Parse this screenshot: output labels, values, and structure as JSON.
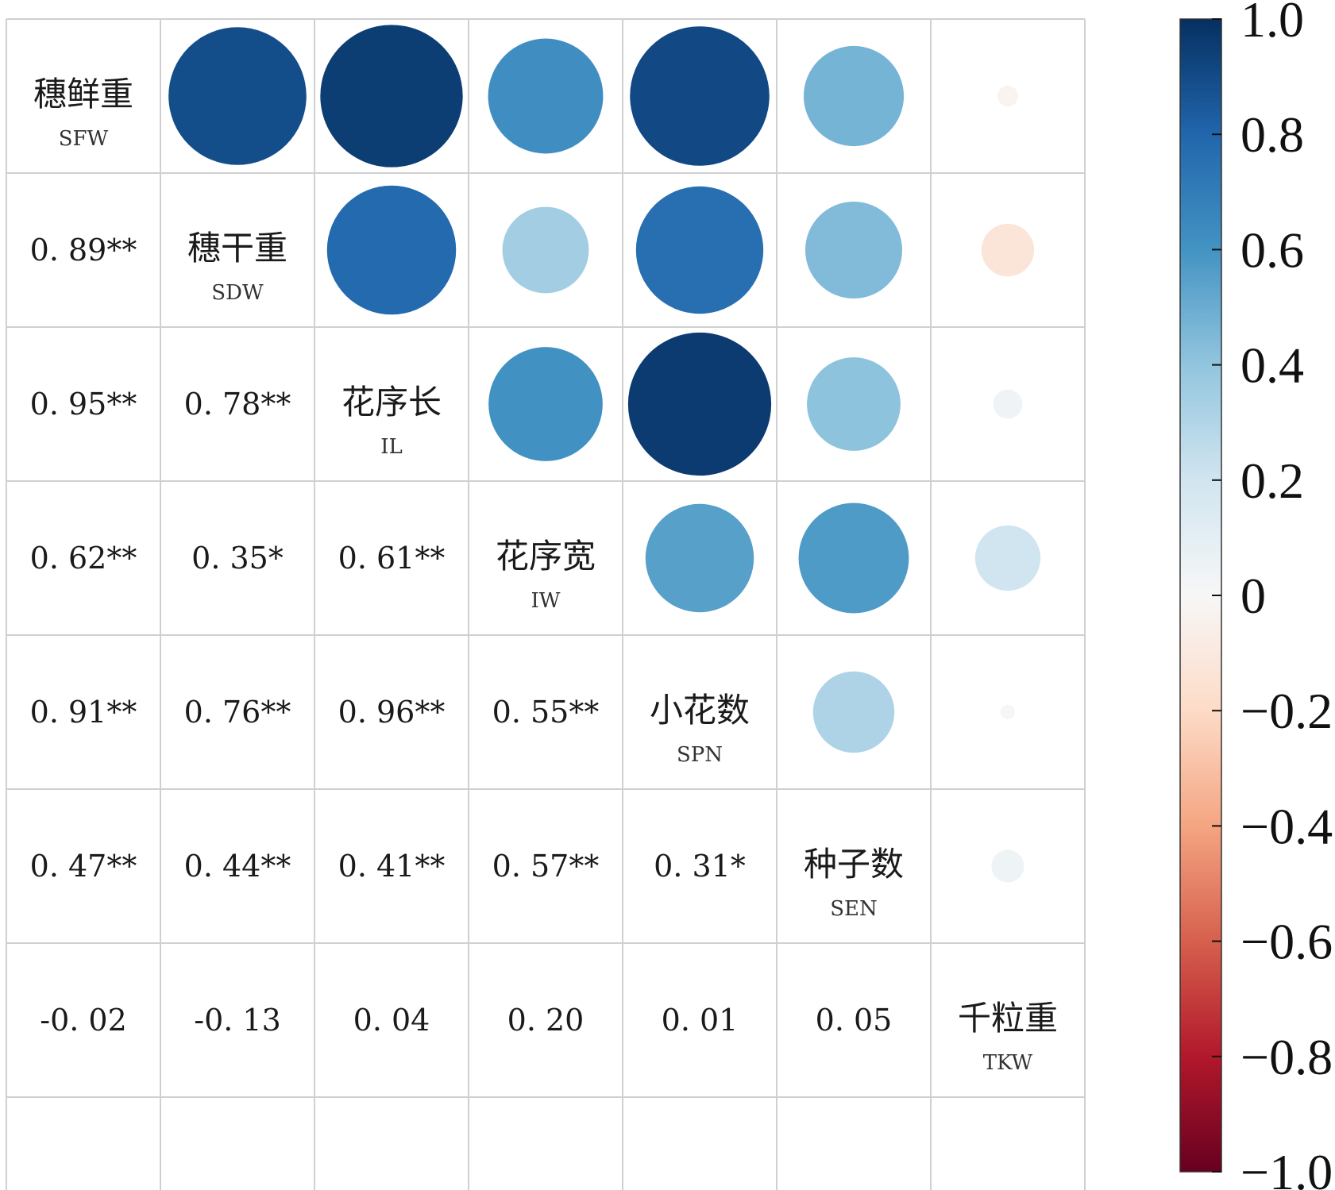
{
  "chart_data": {
    "type": "heatmap",
    "title": "",
    "variables": [
      {
        "name": "穗鲜重",
        "abbr": "SFW"
      },
      {
        "name": "穗干重",
        "abbr": "SDW"
      },
      {
        "name": "花序长",
        "abbr": "IL"
      },
      {
        "name": "花序宽",
        "abbr": "IW"
      },
      {
        "name": "小花数",
        "abbr": "SPN"
      },
      {
        "name": "种子数",
        "abbr": "SEN"
      },
      {
        "name": "千粒重",
        "abbr": "TKW"
      }
    ],
    "correlation_matrix": [
      [
        1.0,
        0.89,
        0.95,
        0.62,
        0.91,
        0.47,
        -0.02
      ],
      [
        0.89,
        1.0,
        0.78,
        0.35,
        0.76,
        0.44,
        -0.13
      ],
      [
        0.95,
        0.78,
        1.0,
        0.61,
        0.96,
        0.41,
        0.04
      ],
      [
        0.62,
        0.35,
        0.61,
        1.0,
        0.55,
        0.57,
        0.2
      ],
      [
        0.91,
        0.76,
        0.96,
        0.55,
        1.0,
        0.31,
        0.01
      ],
      [
        0.47,
        0.44,
        0.41,
        0.57,
        0.31,
        1.0,
        0.05
      ],
      [
        -0.02,
        -0.13,
        0.04,
        0.2,
        0.01,
        0.05,
        1.0
      ]
    ],
    "lower_labels": [
      [],
      [
        "0. 89**"
      ],
      [
        "0. 95**",
        "0. 78**"
      ],
      [
        "0. 62**",
        "0. 35*",
        "0. 61**"
      ],
      [
        "0. 91**",
        "0. 76**",
        "0. 96**",
        "0. 55**"
      ],
      [
        "0. 47**",
        "0. 44**",
        "0. 41**",
        "0. 57**",
        "0. 31*"
      ],
      [
        "-0. 02",
        "-0. 13",
        "0. 04",
        "0. 20",
        "0. 01",
        "0. 05"
      ]
    ],
    "upper_display": "circle",
    "lower_display": "number",
    "colorbar": {
      "range": [
        -1.0,
        1.0
      ],
      "ticks": [
        {
          "value": 1.0,
          "label": "1.0"
        },
        {
          "value": 0.8,
          "label": "0.8"
        },
        {
          "value": 0.6,
          "label": "0.6"
        },
        {
          "value": 0.4,
          "label": "0.4"
        },
        {
          "value": 0.2,
          "label": "0.2"
        },
        {
          "value": 0.0,
          "label": "0"
        },
        {
          "value": -0.2,
          "label": "−0.2"
        },
        {
          "value": -0.4,
          "label": "−0.4"
        },
        {
          "value": -0.6,
          "label": "−0.6"
        },
        {
          "value": -0.8,
          "label": "−0.8"
        },
        {
          "value": -1.0,
          "label": "−1.0"
        }
      ],
      "colors": [
        "#67001f",
        "#b2182b",
        "#d6604d",
        "#f4a582",
        "#fddbc7",
        "#f7f7f7",
        "#d1e5f0",
        "#92c5de",
        "#4393c3",
        "#2166ac",
        "#053061"
      ]
    },
    "grid": true
  }
}
